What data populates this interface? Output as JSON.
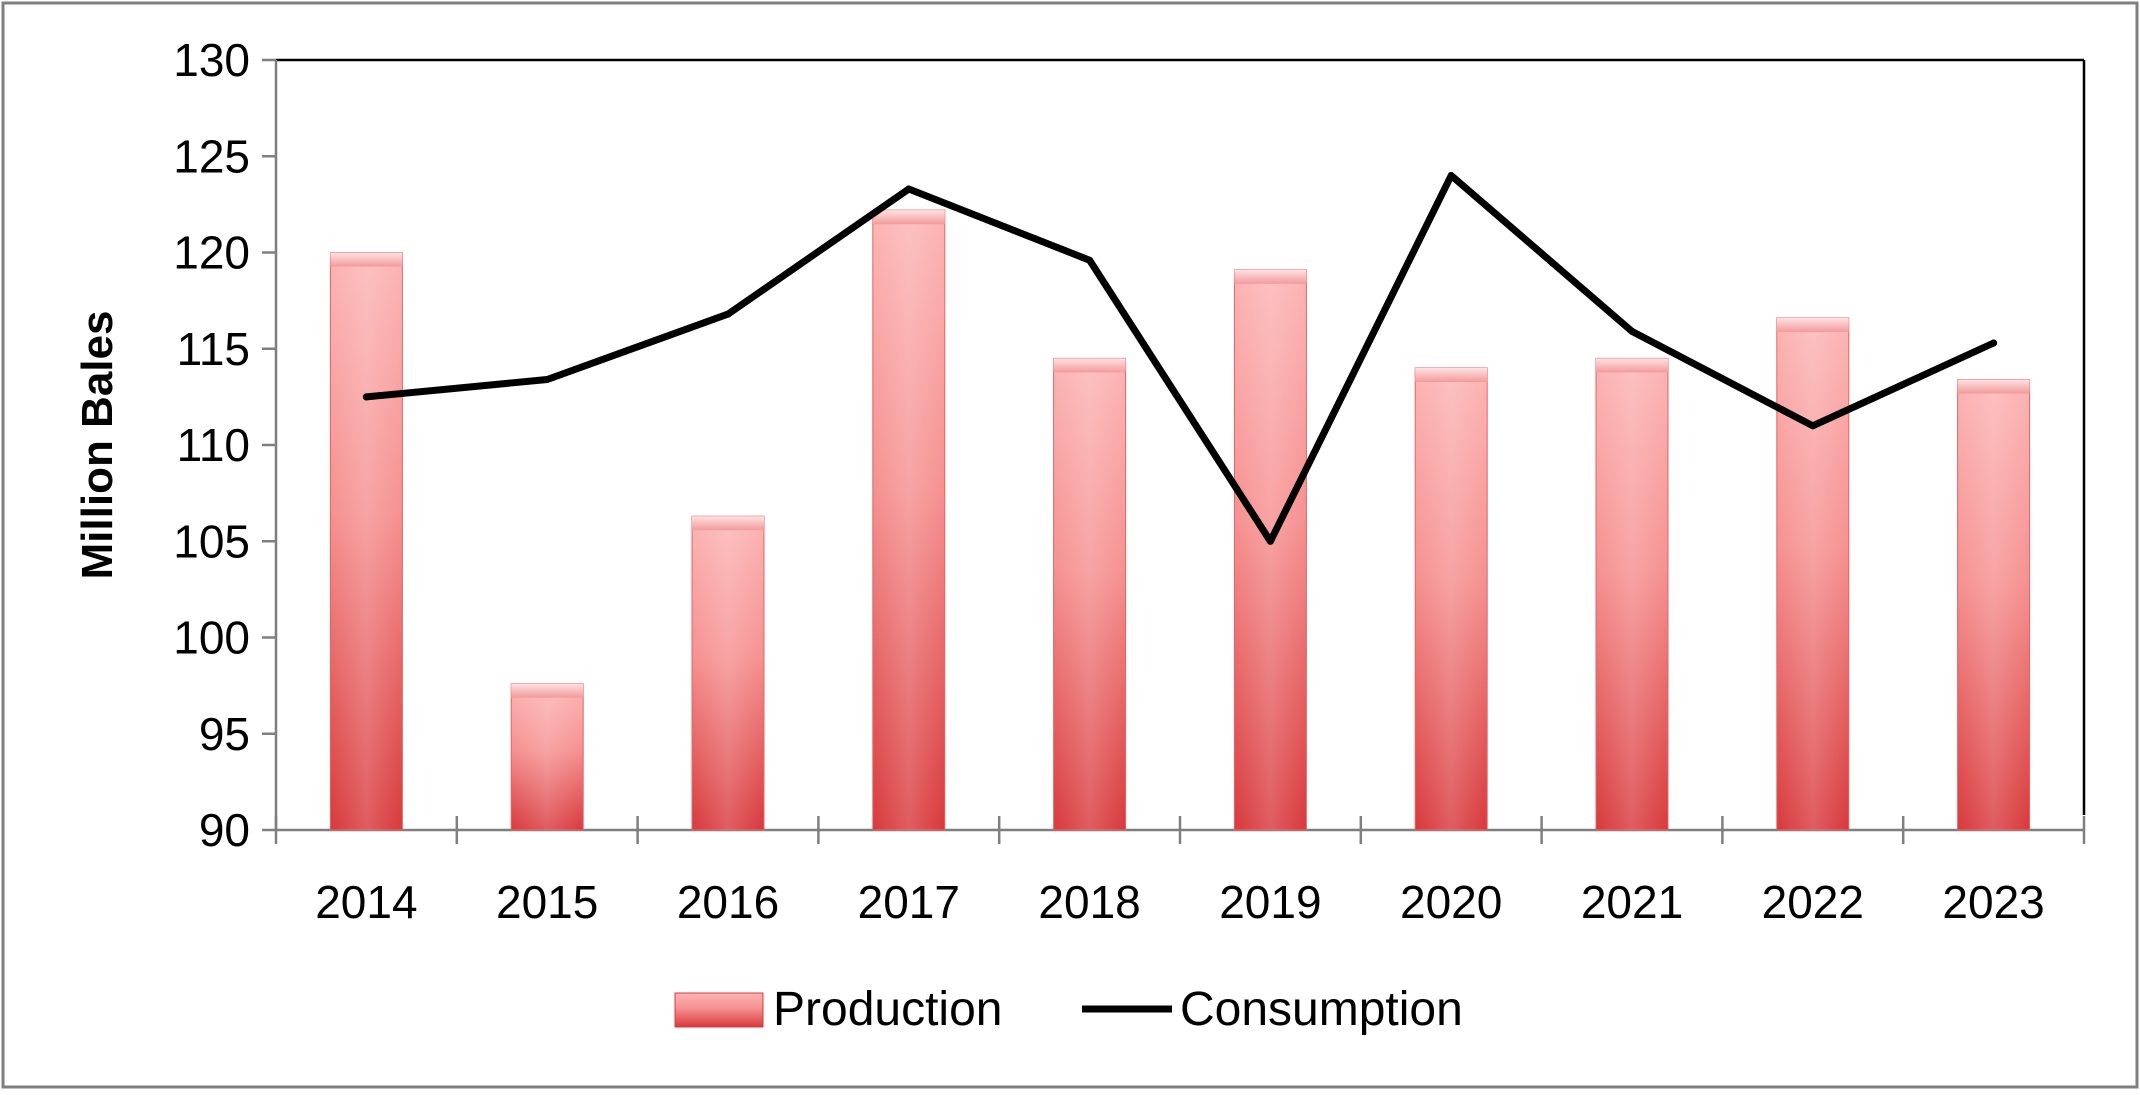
{
  "chart_data": {
    "type": "bar",
    "categories": [
      "2014",
      "2015",
      "2016",
      "2017",
      "2018",
      "2019",
      "2020",
      "2021",
      "2022",
      "2023"
    ],
    "series": [
      {
        "name": "Production",
        "type": "bar",
        "color": "#e8474a",
        "values": [
          120.0,
          97.6,
          106.3,
          122.2,
          114.5,
          119.1,
          114.0,
          114.5,
          116.6,
          113.4
        ]
      },
      {
        "name": "Consumption",
        "type": "line",
        "color": "#000000",
        "values": [
          112.5,
          113.4,
          116.8,
          123.3,
          119.6,
          105.0,
          124.0,
          115.9,
          111.0,
          115.3
        ]
      }
    ],
    "title": "",
    "xlabel": "",
    "ylabel": "Million Bales",
    "ylim": [
      90,
      130
    ],
    "yticks": [
      90,
      95,
      100,
      105,
      110,
      115,
      120,
      125,
      130
    ],
    "grid": false,
    "legend_position": "bottom-center"
  }
}
